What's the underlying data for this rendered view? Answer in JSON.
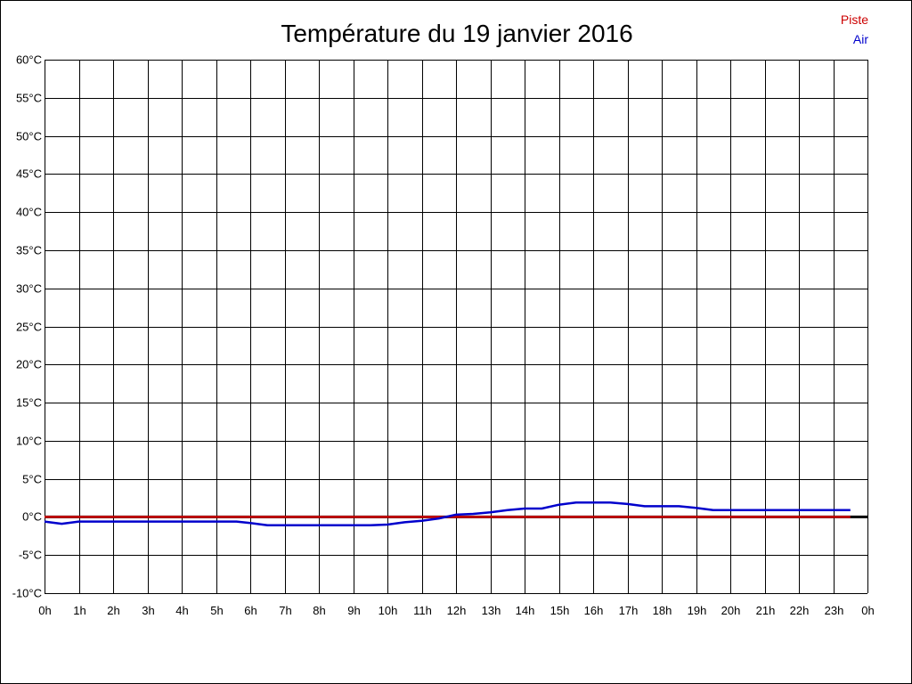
{
  "chart_data": {
    "type": "line",
    "title": "Température du 19 janvier 2016",
    "xlabel": "",
    "ylabel": "",
    "x_ticks": [
      "0h",
      "1h",
      "2h",
      "3h",
      "4h",
      "5h",
      "6h",
      "7h",
      "8h",
      "9h",
      "10h",
      "11h",
      "12h",
      "13h",
      "14h",
      "15h",
      "16h",
      "17h",
      "18h",
      "19h",
      "20h",
      "21h",
      "22h",
      "23h",
      "0h"
    ],
    "y_ticks": [
      "-10°C",
      "-5°C",
      "0°C",
      "5°C",
      "10°C",
      "15°C",
      "20°C",
      "25°C",
      "30°C",
      "35°C",
      "40°C",
      "45°C",
      "50°C",
      "55°C",
      "60°C"
    ],
    "xlim": [
      0,
      24
    ],
    "ylim": [
      -10,
      60
    ],
    "grid": true,
    "legend_position": "top-right",
    "series": [
      {
        "name": "Piste",
        "color": "#cc0000",
        "x": [
          0,
          23.5
        ],
        "y": [
          0,
          0
        ]
      },
      {
        "name": "Air",
        "color": "#0000cc",
        "x": [
          0,
          0.5,
          1,
          2,
          3,
          4,
          5,
          5.6,
          6,
          6.5,
          7,
          8,
          9,
          9.5,
          10,
          10.5,
          11,
          11.5,
          12,
          12.5,
          13,
          13.5,
          14,
          14.5,
          15,
          15.5,
          16,
          16.5,
          17,
          17.5,
          18,
          18.5,
          19,
          19.5,
          20,
          21,
          22,
          23,
          23.5
        ],
        "y": [
          -0.6,
          -0.9,
          -0.6,
          -0.6,
          -0.6,
          -0.6,
          -0.6,
          -0.6,
          -0.8,
          -1.1,
          -1.1,
          -1.1,
          -1.1,
          -1.1,
          -1.0,
          -0.7,
          -0.5,
          -0.2,
          0.3,
          0.4,
          0.6,
          0.9,
          1.1,
          1.1,
          1.6,
          1.9,
          1.9,
          1.9,
          1.7,
          1.4,
          1.4,
          1.4,
          1.2,
          0.9,
          0.9,
          0.9,
          0.9,
          0.9,
          0.9
        ]
      }
    ]
  }
}
